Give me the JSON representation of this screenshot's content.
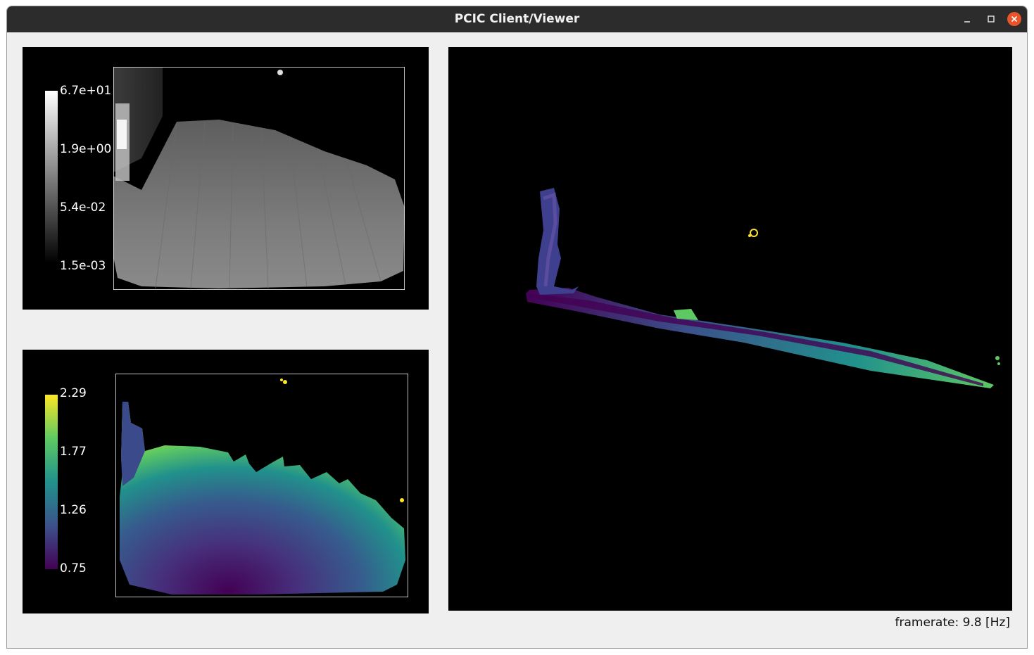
{
  "window": {
    "title": "PCIC Client/Viewer",
    "controls": [
      "minimize-icon",
      "maximize-icon",
      "close-icon"
    ],
    "close_color": "#e9542b"
  },
  "amplitude_view": {
    "colormap": "gray",
    "colorbar_ticks": [
      "6.7e+01",
      "1.9e+00",
      "5.4e-02",
      "1.5e-03"
    ]
  },
  "distance_view": {
    "colormap": "viridis",
    "colorbar_ticks": [
      "2.29",
      "1.77",
      "1.26",
      "0.75"
    ]
  },
  "point_cloud_view": {
    "colormap": "viridis",
    "background": "#000000"
  },
  "status": {
    "framerate": "framerate: 9.8 [Hz]"
  }
}
